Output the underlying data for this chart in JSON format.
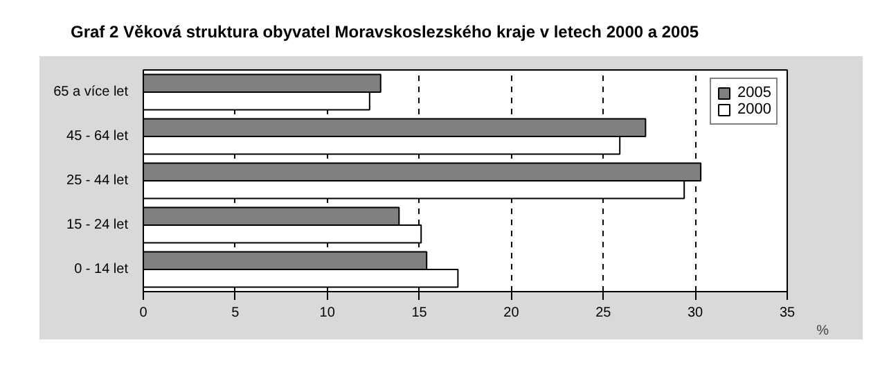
{
  "chart_data": {
    "type": "bar",
    "orientation": "horizontal",
    "title": "Graf 2 Věková struktura obyvatel Moravskoslezského kraje v letech 2000 a 2005",
    "xlabel": "%",
    "categories": [
      "65 a více let",
      "45 - 64 let",
      "25 - 44 let",
      "15 - 24 let",
      "0 - 14 let"
    ],
    "series": [
      {
        "name": "2005",
        "color": "#808080",
        "values": [
          12.9,
          27.3,
          30.3,
          13.9,
          15.4
        ]
      },
      {
        "name": "2000",
        "color": "#ffffff",
        "values": [
          12.3,
          25.9,
          29.4,
          15.1,
          17.1
        ]
      }
    ],
    "xlim": [
      0,
      35
    ],
    "xticks": [
      0,
      5,
      10,
      15,
      20,
      25,
      30,
      35
    ],
    "grid": "x",
    "legend": "top right"
  }
}
